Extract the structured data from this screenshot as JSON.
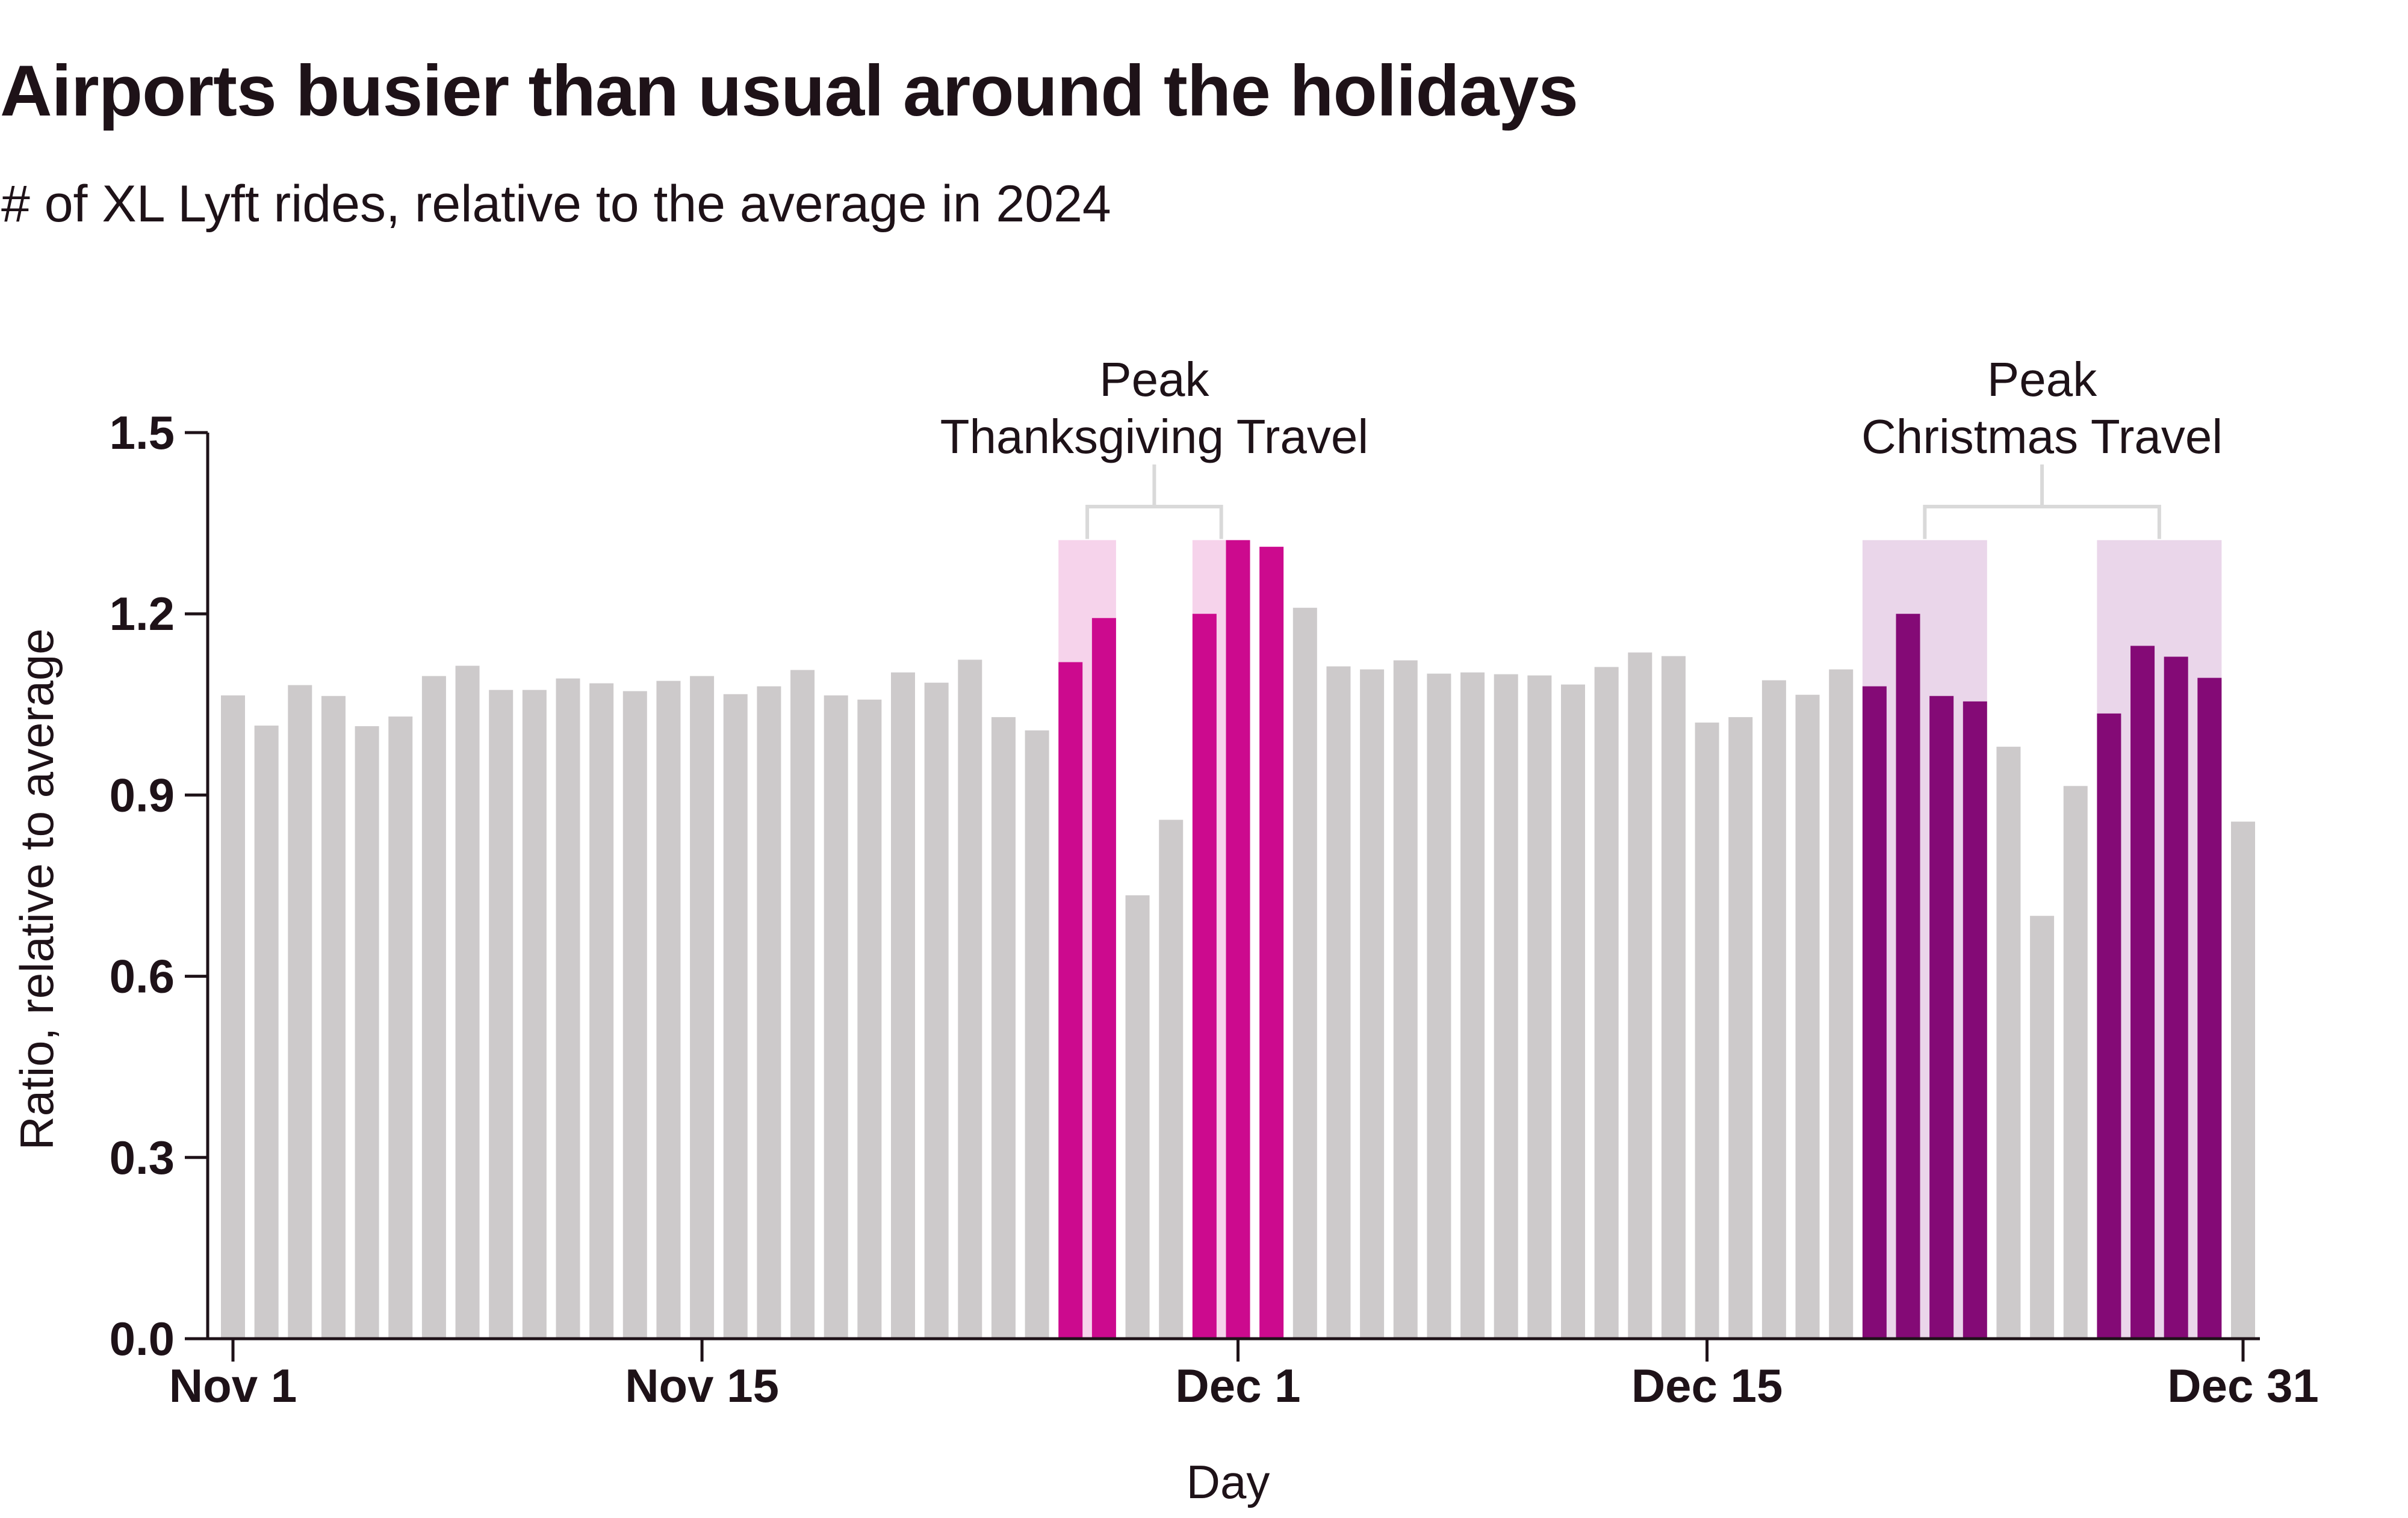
{
  "chart_data": {
    "type": "bar",
    "title": "Airports busier than usual around the holidays",
    "subtitle": "# of XL Lyft rides, relative to the average in 2024",
    "xlabel": "Day",
    "ylabel": "Ratio, relative to average",
    "ylim": [
      0,
      1.5
    ],
    "yticks": [
      {
        "value": 0.0,
        "label": "0.0"
      },
      {
        "value": 0.3,
        "label": "0.3"
      },
      {
        "value": 0.6,
        "label": "0.6"
      },
      {
        "value": 0.9,
        "label": "0.9"
      },
      {
        "value": 1.2,
        "label": "1.2"
      },
      {
        "value": 1.5,
        "label": "1.5"
      }
    ],
    "xticks": [
      {
        "index": 0,
        "label": "Nov 1"
      },
      {
        "index": 14,
        "label": "Nov 15"
      },
      {
        "index": 30,
        "label": "Dec 1"
      },
      {
        "index": 44,
        "label": "Dec 15"
      },
      {
        "index": 60,
        "label": "Dec 31"
      }
    ],
    "values": [
      1.065,
      1.015,
      1.082,
      1.064,
      1.014,
      1.03,
      1.097,
      1.114,
      1.074,
      1.074,
      1.093,
      1.085,
      1.072,
      1.089,
      1.097,
      1.067,
      1.08,
      1.107,
      1.065,
      1.058,
      1.103,
      1.086,
      1.124,
      1.029,
      1.007,
      1.12,
      1.193,
      0.734,
      0.859,
      1.2,
      1.322,
      1.311,
      1.21,
      1.113,
      1.108,
      1.123,
      1.101,
      1.103,
      1.1,
      1.098,
      1.083,
      1.112,
      1.136,
      1.13,
      1.02,
      1.029,
      1.09,
      1.066,
      1.108,
      1.08,
      1.2,
      1.064,
      1.055,
      0.98,
      0.7,
      0.915,
      1.035,
      1.147,
      1.129,
      1.094,
      0.856
    ],
    "highlight_groups": [
      {
        "name": "Thanksgiving",
        "indices": [
          25,
          26,
          29,
          30,
          31
        ],
        "color": "#cc0a8e"
      },
      {
        "name": "Christmas",
        "indices": [
          49,
          50,
          51,
          52,
          56,
          57,
          58,
          59
        ],
        "color": "#840a76"
      }
    ],
    "highlight_bands": [
      {
        "start": 25,
        "end": 26,
        "color": "#f6d3eb"
      },
      {
        "start": 29,
        "end": 30,
        "color": "#f6d3eb"
      },
      {
        "start": 49,
        "end": 52,
        "color": "#ead6ea"
      },
      {
        "start": 56,
        "end": 59,
        "color": "#ead6ea"
      }
    ],
    "annotations": [
      {
        "lines": [
          "Peak",
          "Thanksgiving Travel"
        ],
        "brackets": [
          [
            25,
            26
          ],
          [
            29,
            30
          ]
        ]
      },
      {
        "lines": [
          "Peak",
          "Christmas Travel"
        ],
        "brackets": [
          [
            49,
            52
          ],
          [
            56,
            59
          ]
        ]
      }
    ],
    "colors": {
      "default": "#cdcacb",
      "axis": "#1e1218",
      "bracket": "#d9d9d9"
    }
  }
}
